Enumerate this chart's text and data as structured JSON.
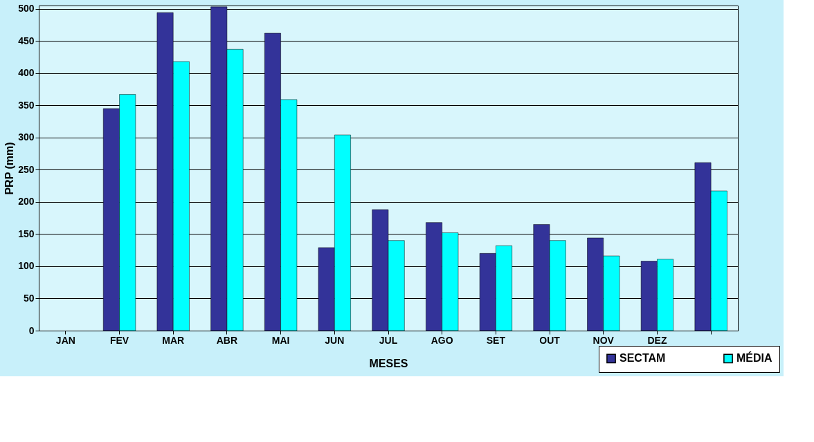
{
  "chart_data": {
    "type": "bar",
    "xlabel": "MESES",
    "ylabel": "PRP (mm)",
    "categories": [
      "JAN",
      "FEV",
      "MAR",
      "ABR",
      "MAI",
      "JUN",
      "JUL",
      "AGO",
      "SET",
      "OUT",
      "NOV",
      "DEZ",
      null
    ],
    "series": [
      {
        "name": "SECTAM",
        "color": "#333399",
        "values": [
          null,
          345,
          494,
          503,
          462,
          129,
          188,
          168,
          120,
          165,
          144,
          108,
          261
        ]
      },
      {
        "name": "MÉDIA",
        "color": "#00ffff",
        "values": [
          null,
          367,
          418,
          437,
          359,
          304,
          140,
          152,
          132,
          140,
          116,
          111,
          217
        ]
      }
    ],
    "ylim": [
      0,
      505
    ],
    "yticks": [
      0,
      50,
      100,
      150,
      200,
      250,
      300,
      350,
      400,
      450,
      500
    ],
    "grid": "y",
    "legend": "bottom right"
  }
}
